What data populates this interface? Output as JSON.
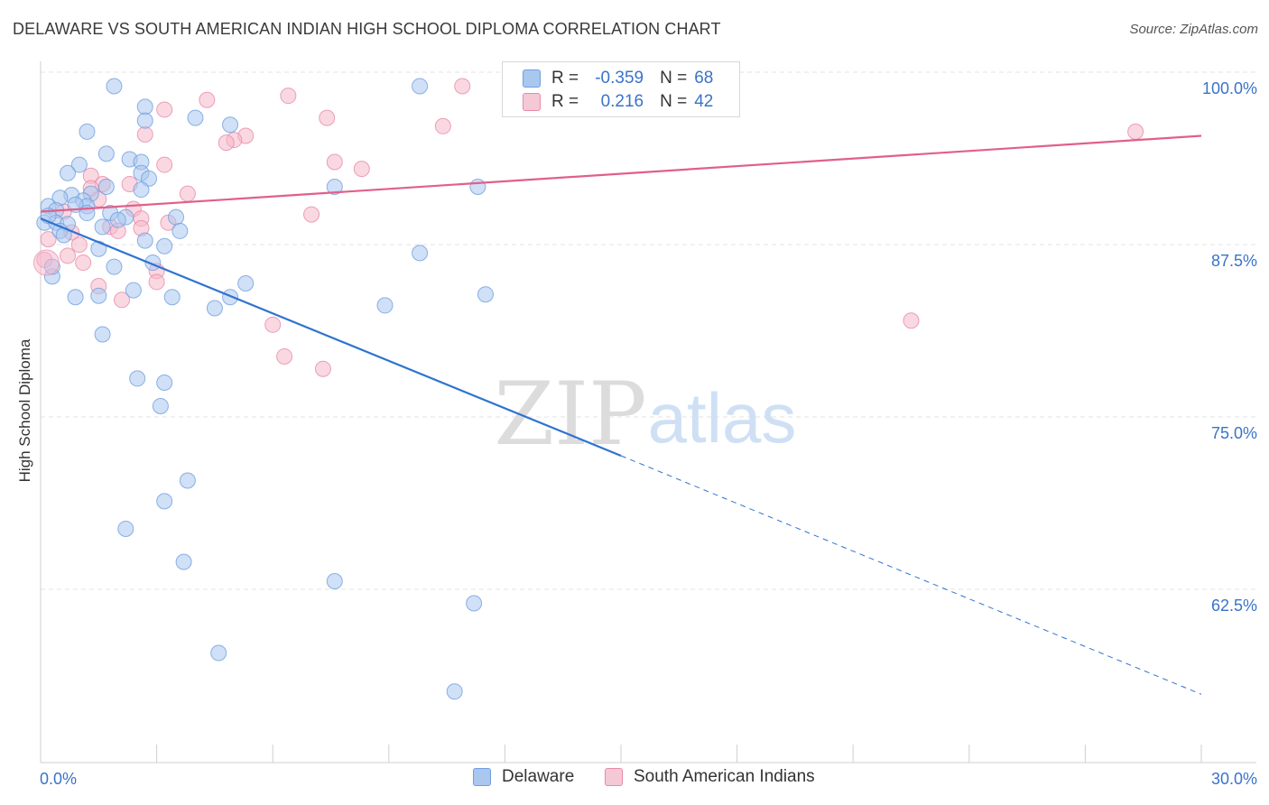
{
  "header": {
    "title": "DELAWARE VS SOUTH AMERICAN INDIAN HIGH SCHOOL DIPLOMA CORRELATION CHART",
    "source": "Source: ZipAtlas.com"
  },
  "legend_top": {
    "rows": [
      {
        "r_label": "R =",
        "r_value": "-0.359",
        "n_label": "N =",
        "n_value": "68"
      },
      {
        "r_label": "R =",
        "r_value": "0.216",
        "n_label": "N =",
        "n_value": "42"
      }
    ]
  },
  "legend_bottom": {
    "items": [
      "Delaware",
      "South American Indians"
    ]
  },
  "watermark": {
    "zip": "ZIP",
    "atlas": "atlas"
  },
  "colors": {
    "blue_fill": "#a9c7ef",
    "blue_stroke": "#6f9fe0",
    "blue_line": "#2f73d0",
    "pink_fill": "#f5b8cb",
    "pink_stroke": "#e98aa8",
    "pink_line": "#e0608a",
    "tick_label": "#3a73c9",
    "grid": "#e3e3e3"
  },
  "chart_data": {
    "type": "scatter",
    "title": "DELAWARE VS SOUTH AMERICAN INDIAN HIGH SCHOOL DIPLOMA CORRELATION CHART",
    "xlabel": "",
    "ylabel": "High School Diploma",
    "xlim": [
      0,
      30
    ],
    "ylim": [
      50.5,
      101
    ],
    "x_tick_labels": [
      "0.0%",
      "30.0%"
    ],
    "y_ticks": [
      62.5,
      75.0,
      87.5,
      100.0
    ],
    "y_tick_labels": [
      "62.5%",
      "75.0%",
      "87.5%",
      "100.0%"
    ],
    "grid": true,
    "legend_position": "top-center",
    "series": [
      {
        "name": "Delaware",
        "color": "#a9c7ef",
        "points": [
          [
            1.9,
            100.1
          ],
          [
            9.8,
            100.1
          ],
          [
            2.7,
            98.6
          ],
          [
            4,
            97.8
          ],
          [
            2.7,
            97.6
          ],
          [
            4.9,
            97.3
          ],
          [
            1.2,
            96.8
          ],
          [
            1.7,
            95.2
          ],
          [
            2.3,
            94.8
          ],
          [
            2.6,
            94.6
          ],
          [
            1.0,
            94.4
          ],
          [
            0.7,
            93.8
          ],
          [
            2.6,
            93.8
          ],
          [
            7.6,
            92.8
          ],
          [
            11.3,
            92.8
          ],
          [
            1.7,
            92.8
          ],
          [
            0.8,
            92.2
          ],
          [
            1.3,
            92.3
          ],
          [
            0.5,
            92
          ],
          [
            1.1,
            91.8
          ],
          [
            0.2,
            91.4
          ],
          [
            0.4,
            91.1
          ],
          [
            1.2,
            91.4
          ],
          [
            1.8,
            90.9
          ],
          [
            2.2,
            90.6
          ],
          [
            3.5,
            90.6
          ],
          [
            0.1,
            90.2
          ],
          [
            0.4,
            90.2
          ],
          [
            0.7,
            90.1
          ],
          [
            1.6,
            89.9
          ],
          [
            2.0,
            90.4
          ],
          [
            0.5,
            89.6
          ],
          [
            2.7,
            88.9
          ],
          [
            3.2,
            88.5
          ],
          [
            1.5,
            88.3
          ],
          [
            9.8,
            88.0
          ],
          [
            2.9,
            87.3
          ],
          [
            1.9,
            87.0
          ],
          [
            0.3,
            86.3
          ],
          [
            5.3,
            85.8
          ],
          [
            2.4,
            85.3
          ],
          [
            1.5,
            84.9
          ],
          [
            0.9,
            84.8
          ],
          [
            11.5,
            85.0
          ],
          [
            3.4,
            84.8
          ],
          [
            4.9,
            84.8
          ],
          [
            8.9,
            84.2
          ],
          [
            4.5,
            84.0
          ],
          [
            1.6,
            82.1
          ],
          [
            2.5,
            78.9
          ],
          [
            3.2,
            78.6
          ],
          [
            3.1,
            76.9
          ],
          [
            3.8,
            71.5
          ],
          [
            3.2,
            70.0
          ],
          [
            2.2,
            68.0
          ],
          [
            3.7,
            65.6
          ],
          [
            7.6,
            64.2
          ],
          [
            11.2,
            62.6
          ],
          [
            4.6,
            59.0
          ],
          [
            10.7,
            56.2
          ],
          [
            0.2,
            90.7
          ],
          [
            0.9,
            91.5
          ],
          [
            2.8,
            93.4
          ],
          [
            1.2,
            90.9
          ],
          [
            0.6,
            89.3
          ],
          [
            3.6,
            89.6
          ],
          [
            0.3,
            87.0
          ],
          [
            2.6,
            92.6
          ]
        ]
      },
      {
        "name": "South American Indians",
        "color": "#f5b8cb",
        "points": [
          [
            10.9,
            100.1
          ],
          [
            6.4,
            99.4
          ],
          [
            4.3,
            99.1
          ],
          [
            3.2,
            98.4
          ],
          [
            7.4,
            97.8
          ],
          [
            10.4,
            97.2
          ],
          [
            28.3,
            96.8
          ],
          [
            2.7,
            96.6
          ],
          [
            5.3,
            96.5
          ],
          [
            5.0,
            96.2
          ],
          [
            4.8,
            96.0
          ],
          [
            7.6,
            94.6
          ],
          [
            3.2,
            94.4
          ],
          [
            8.3,
            94.1
          ],
          [
            1.3,
            93.6
          ],
          [
            1.6,
            93.0
          ],
          [
            1.3,
            92.7
          ],
          [
            2.3,
            93.0
          ],
          [
            3.8,
            92.3
          ],
          [
            1.5,
            91.9
          ],
          [
            2.4,
            91.2
          ],
          [
            0.6,
            91.0
          ],
          [
            7.0,
            90.8
          ],
          [
            2.6,
            90.5
          ],
          [
            3.3,
            90.2
          ],
          [
            2.6,
            89.8
          ],
          [
            1.8,
            89.9
          ],
          [
            0.8,
            89.5
          ],
          [
            0.2,
            89.0
          ],
          [
            1.0,
            88.6
          ],
          [
            0.7,
            87.8
          ],
          [
            1.1,
            87.3
          ],
          [
            3.0,
            86.7
          ],
          [
            3.0,
            85.9
          ],
          [
            1.5,
            85.6
          ],
          [
            2.1,
            84.6
          ],
          [
            6.0,
            82.8
          ],
          [
            22.5,
            83.1
          ],
          [
            6.3,
            80.5
          ],
          [
            7.3,
            79.6
          ],
          [
            0.1,
            87.5
          ],
          [
            2.0,
            89.6
          ]
        ]
      }
    ],
    "trend_lines": [
      {
        "series": "Delaware",
        "solid": [
          [
            0,
            90.5
          ],
          [
            15,
            73.3
          ]
        ],
        "dashed": [
          [
            15,
            73.3
          ],
          [
            30,
            56.0
          ]
        ]
      },
      {
        "series": "South American Indians",
        "solid": [
          [
            0,
            91.0
          ],
          [
            30,
            96.5
          ]
        ]
      }
    ]
  }
}
